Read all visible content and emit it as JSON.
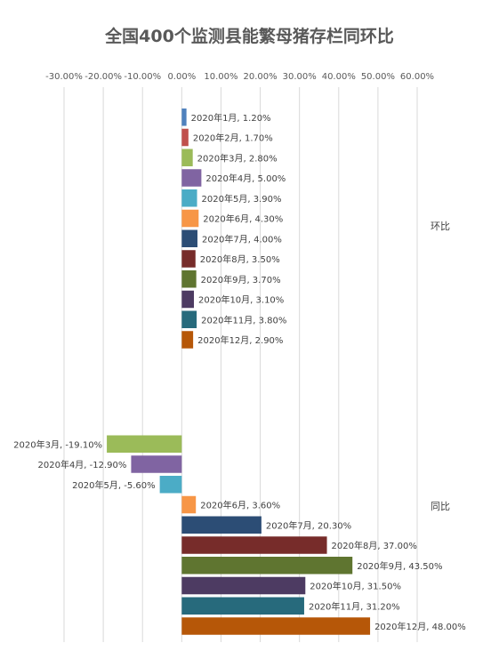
{
  "chart_data": {
    "type": "bar",
    "orientation": "horizontal",
    "title": "全国400个监测县能繁母猪存栏同环比",
    "x_ticks": [
      "-30.00%",
      "-20.00%",
      "-10.00%",
      "0.00%",
      "10.00%",
      "20.00%",
      "30.00%",
      "40.00%",
      "50.00%",
      "60.00%"
    ],
    "xlim": [
      -30,
      60
    ],
    "unit": "%",
    "grid": true,
    "legend": "none",
    "groups": [
      {
        "category": "环比",
        "bars": [
          {
            "label": "2020年1月, 1.20%",
            "value": 1.2,
            "color": "#4F81BD"
          },
          {
            "label": "2020年2月, 1.70%",
            "value": 1.7,
            "color": "#C0504D"
          },
          {
            "label": "2020年3月, 2.80%",
            "value": 2.8,
            "color": "#9BBB59"
          },
          {
            "label": "2020年4月, 5.00%",
            "value": 5.0,
            "color": "#8064A2"
          },
          {
            "label": "2020年5月, 3.90%",
            "value": 3.9,
            "color": "#4BACC6"
          },
          {
            "label": "2020年6月, 4.30%",
            "value": 4.3,
            "color": "#F79646"
          },
          {
            "label": "2020年7月, 4.00%",
            "value": 4.0,
            "color": "#2C4D75"
          },
          {
            "label": "2020年8月, 3.50%",
            "value": 3.5,
            "color": "#772C2A"
          },
          {
            "label": "2020年9月, 3.70%",
            "value": 3.7,
            "color": "#5F7530"
          },
          {
            "label": "2020年10月, 3.10%",
            "value": 3.1,
            "color": "#4D3B62"
          },
          {
            "label": "2020年11月, 3.80%",
            "value": 3.8,
            "color": "#276A7C"
          },
          {
            "label": "2020年12月, 2.90%",
            "value": 2.9,
            "color": "#B65708"
          }
        ]
      },
      {
        "category": "同比",
        "bars": [
          {
            "label": "",
            "value": null,
            "color": "#4F81BD"
          },
          {
            "label": "",
            "value": null,
            "color": "#C0504D"
          },
          {
            "label": "2020年3月, -19.10%",
            "value": -19.1,
            "color": "#9BBB59"
          },
          {
            "label": "2020年4月, -12.90%",
            "value": -12.9,
            "color": "#8064A2"
          },
          {
            "label": "2020年5月, -5.60%",
            "value": -5.6,
            "color": "#4BACC6"
          },
          {
            "label": "2020年6月, 3.60%",
            "value": 3.6,
            "color": "#F79646"
          },
          {
            "label": "2020年7月, 20.30%",
            "value": 20.3,
            "color": "#2C4D75"
          },
          {
            "label": "2020年8月, 37.00%",
            "value": 37.0,
            "color": "#772C2A"
          },
          {
            "label": "2020年9月, 43.50%",
            "value": 43.5,
            "color": "#5F7530"
          },
          {
            "label": "2020年10月, 31.50%",
            "value": 31.5,
            "color": "#4D3B62"
          },
          {
            "label": "2020年11月, 31.20%",
            "value": 31.2,
            "color": "#276A7C"
          },
          {
            "label": "2020年12月, 48.00%",
            "value": 48.0,
            "color": "#B65708"
          }
        ]
      }
    ]
  }
}
